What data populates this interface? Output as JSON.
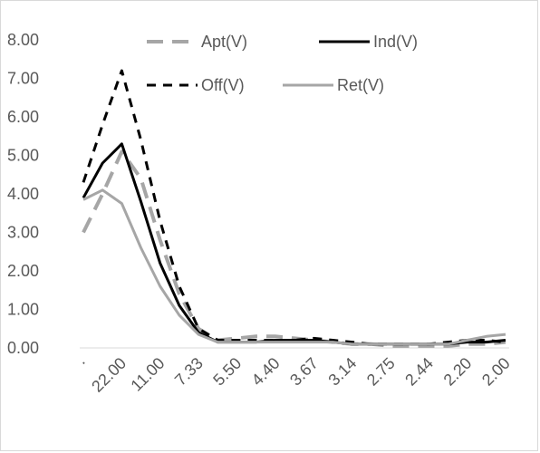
{
  "chart_data": {
    "type": "line",
    "title": "",
    "xlabel": "",
    "ylabel": "",
    "categories": [
      "·",
      "",
      "22.00",
      "",
      "11.00",
      "",
      "7.33",
      "",
      "5.50",
      "",
      "4.40",
      "",
      "3.67",
      "",
      "3.14",
      "",
      "2.75",
      "",
      "2.44",
      "",
      "2.20",
      "",
      "2.00"
    ],
    "ylim": [
      0,
      8
    ],
    "yticks": [
      "0.00",
      "1.00",
      "2.00",
      "3.00",
      "4.00",
      "5.00",
      "6.00",
      "7.00",
      "8.00"
    ],
    "grid": false,
    "legend_position": "top",
    "series": [
      {
        "name": "Apt(V)",
        "color": "#a6a6a6",
        "dash": "long",
        "values": [
          3.0,
          4.0,
          5.1,
          4.4,
          2.8,
          1.4,
          0.5,
          0.2,
          0.25,
          0.3,
          0.3,
          0.25,
          0.2,
          0.15,
          0.1,
          0.1,
          0.05,
          0.05,
          0.05,
          0.05,
          0.1,
          0.1,
          0.15
        ]
      },
      {
        "name": "Ind(V)",
        "color": "#000000",
        "dash": "solid",
        "values": [
          3.9,
          4.8,
          5.3,
          3.8,
          2.2,
          1.1,
          0.4,
          0.15,
          0.15,
          0.15,
          0.2,
          0.2,
          0.2,
          0.15,
          0.1,
          0.1,
          0.1,
          0.1,
          0.1,
          0.1,
          0.15,
          0.15,
          0.2
        ]
      },
      {
        "name": "Off(V)",
        "color": "#000000",
        "dash": "short",
        "values": [
          4.3,
          5.8,
          7.2,
          5.4,
          3.3,
          1.6,
          0.5,
          0.2,
          0.2,
          0.2,
          0.2,
          0.2,
          0.25,
          0.2,
          0.15,
          0.1,
          0.1,
          0.1,
          0.1,
          0.15,
          0.2,
          0.2,
          0.15
        ]
      },
      {
        "name": "Ret(V)",
        "color": "#a6a6a6",
        "dash": "solid",
        "values": [
          3.85,
          4.1,
          3.75,
          2.6,
          1.6,
          0.85,
          0.35,
          0.15,
          0.15,
          0.15,
          0.15,
          0.15,
          0.15,
          0.15,
          0.1,
          0.1,
          0.1,
          0.1,
          0.1,
          0.1,
          0.2,
          0.3,
          0.35
        ]
      }
    ]
  }
}
